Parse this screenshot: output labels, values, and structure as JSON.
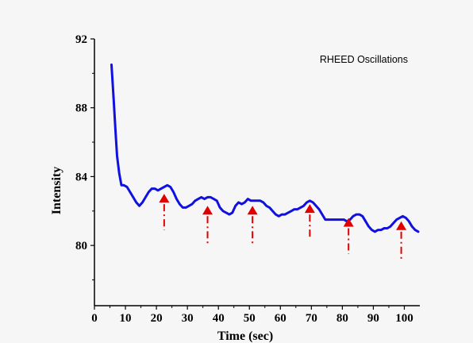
{
  "chart_data": {
    "type": "line",
    "title": "",
    "legend_text": "RHEED Oscillations",
    "legend_position": "top-right",
    "xlabel": "Time (sec)",
    "ylabel": "Intensity",
    "xlim": [
      0,
      105
    ],
    "ylim": [
      76.5,
      92
    ],
    "x_ticks": [
      0,
      10,
      20,
      30,
      40,
      50,
      60,
      70,
      80,
      90,
      100
    ],
    "y_ticks": [
      80,
      84,
      88,
      92
    ],
    "grid": false,
    "line_color": "#1010e0",
    "marker_color": "#e00000",
    "series": [
      {
        "x": [
          5.5,
          6.2,
          6.8,
          7.3,
          8.0,
          8.7,
          9.5,
          10.5,
          11.5,
          12.5,
          13.5,
          14.5,
          15.5,
          16.5,
          17.5,
          18.5,
          19.5,
          20.5,
          21.5,
          22.5,
          23.5,
          24.5,
          25.5,
          26.5,
          27.5,
          28.5,
          29.5,
          30.5,
          31.5,
          32.5,
          33.5,
          34.5,
          35.5,
          36.5,
          37.5,
          38.5,
          39.5,
          40.5,
          41.5,
          42.5,
          43.5,
          44.5,
          45.5,
          46.5,
          47.5,
          48.5,
          49.5,
          50.5,
          51.5,
          52.5,
          53.5,
          54.5,
          55.5,
          56.5,
          57.5,
          58.5,
          59.5,
          60.5,
          61.5,
          62.5,
          63.5,
          64.5,
          65.5,
          66.5,
          67.5,
          68.5,
          69.5,
          70.5,
          71.5,
          72.5,
          73.5,
          74.5,
          75.5,
          76.5,
          77.5,
          78.5,
          79.5,
          80.5,
          81.5,
          82.5,
          83.5,
          84.5,
          85.5,
          86.5,
          87.5,
          88.5,
          89.5,
          90.5,
          91.5,
          92.5,
          93.5,
          94.5,
          95.5,
          96.5,
          97.5,
          98.5,
          99.5,
          100.5,
          101.5,
          102.5,
          103.5,
          104.5
        ],
        "y": [
          90.5,
          88.5,
          86.6,
          85.2,
          84.2,
          83.5,
          83.5,
          83.4,
          83.1,
          82.8,
          82.5,
          82.3,
          82.5,
          82.8,
          83.1,
          83.3,
          83.3,
          83.2,
          83.3,
          83.4,
          83.5,
          83.4,
          83.1,
          82.7,
          82.4,
          82.2,
          82.2,
          82.3,
          82.4,
          82.6,
          82.7,
          82.8,
          82.7,
          82.8,
          82.8,
          82.7,
          82.6,
          82.2,
          82.0,
          81.9,
          81.8,
          81.9,
          82.3,
          82.5,
          82.4,
          82.5,
          82.7,
          82.6,
          82.6,
          82.6,
          82.6,
          82.5,
          82.3,
          82.2,
          82.0,
          81.8,
          81.7,
          81.8,
          81.8,
          81.9,
          82.0,
          82.1,
          82.1,
          82.2,
          82.3,
          82.5,
          82.6,
          82.5,
          82.3,
          82.1,
          81.8,
          81.5,
          81.5,
          81.5,
          81.5,
          81.5,
          81.5,
          81.5,
          81.4,
          81.5,
          81.7,
          81.8,
          81.8,
          81.7,
          81.4,
          81.1,
          80.9,
          80.8,
          80.9,
          80.9,
          81.0,
          81.0,
          81.1,
          81.3,
          81.5,
          81.6,
          81.7,
          81.6,
          81.4,
          81.1,
          80.9,
          80.8
        ]
      }
    ],
    "markers": [
      {
        "x": 22.5,
        "y_tip": 83.0,
        "y_bottom": 80.9
      },
      {
        "x": 36.5,
        "y_tip": 82.3,
        "y_bottom": 80.0
      },
      {
        "x": 51.0,
        "y_tip": 82.3,
        "y_bottom": 80.1
      },
      {
        "x": 69.5,
        "y_tip": 82.4,
        "y_bottom": 80.4
      },
      {
        "x": 82.0,
        "y_tip": 81.6,
        "y_bottom": 79.5
      },
      {
        "x": 99.0,
        "y_tip": 81.4,
        "y_bottom": 79.1
      }
    ]
  }
}
